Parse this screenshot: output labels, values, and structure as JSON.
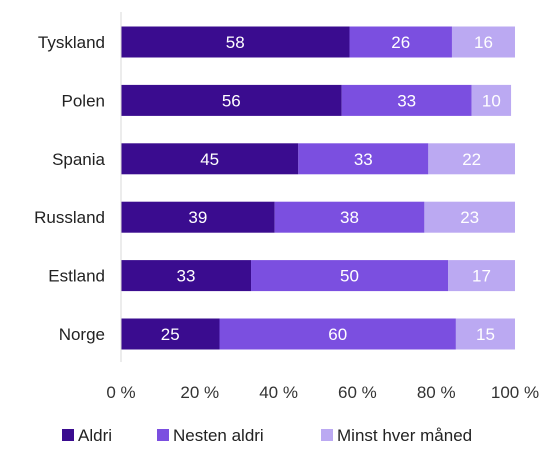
{
  "chart_data": {
    "type": "bar",
    "orientation": "horizontal",
    "stacked": true,
    "categories": [
      "Tyskland",
      "Polen",
      "Spania",
      "Russland",
      "Estland",
      "Norge"
    ],
    "series": [
      {
        "name": "Aldri",
        "color": "#3A0C8F",
        "values": [
          58,
          56,
          45,
          39,
          33,
          25
        ]
      },
      {
        "name": "Nesten aldri",
        "color": "#7B4FE0",
        "values": [
          26,
          33,
          33,
          38,
          50,
          60
        ]
      },
      {
        "name": "Minst hver måned",
        "color": "#BBA9F2",
        "values": [
          16,
          10,
          22,
          23,
          17,
          15
        ]
      }
    ],
    "xlim": [
      0,
      100
    ],
    "x_ticks": [
      "0 %",
      "20 %",
      "40 %",
      "60 %",
      "80 %",
      "100 %"
    ],
    "grid": false,
    "legend_position": "bottom"
  }
}
